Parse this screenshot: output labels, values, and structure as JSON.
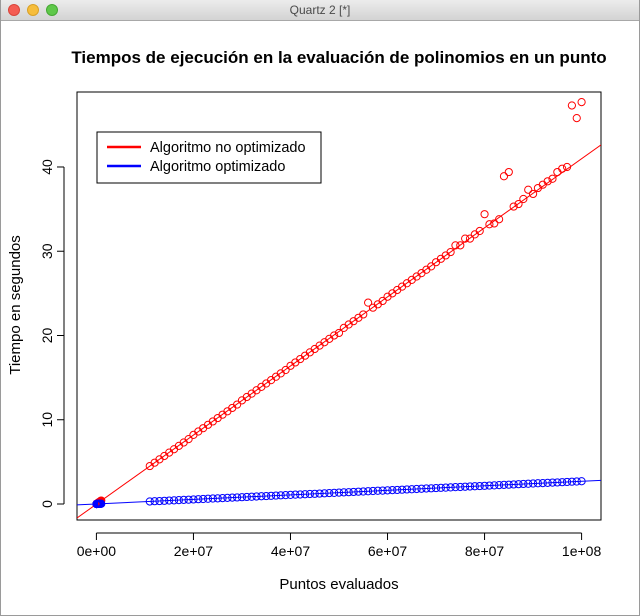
{
  "window": {
    "title": "Quartz 2 [*]"
  },
  "chart_data": {
    "type": "scatter",
    "title": "Tiempos de ejecución en la evaluación de polinomios en un punto",
    "xlabel": "Puntos evaluados",
    "ylabel": "Tiempo en segundos",
    "xlim": [
      -4000000,
      104000000
    ],
    "ylim": [
      -1.9,
      48.9
    ],
    "xticks": [
      0,
      20000000,
      40000000,
      60000000,
      80000000,
      100000000
    ],
    "xtick_labels": [
      "0e+00",
      "2e+07",
      "4e+07",
      "6e+07",
      "8e+07",
      "1e+08"
    ],
    "yticks": [
      0,
      10,
      20,
      30,
      40
    ],
    "ytick_labels": [
      "0",
      "10",
      "20",
      "30",
      "40"
    ],
    "grid": false,
    "legend": {
      "position": "top-left",
      "entries": [
        {
          "label": "Algoritmo no optimizado",
          "color": "#ff0000"
        },
        {
          "label": "Algoritmo optimizado",
          "color": "#0000ff"
        }
      ]
    },
    "series": [
      {
        "name": "Algoritmo no optimizado",
        "color": "#ff0000",
        "marker": "circle-open",
        "x": [
          10000,
          20000,
          30000,
          40000,
          50000,
          60000,
          70000,
          80000,
          90000,
          100000,
          200000,
          300000,
          400000,
          500000,
          600000,
          700000,
          800000,
          900000,
          1000000,
          11000000,
          12000000,
          13000000,
          14000000,
          15000000,
          16000000,
          17000000,
          18000000,
          19000000,
          20000000,
          21000000,
          22000000,
          23000000,
          24000000,
          25000000,
          26000000,
          27000000,
          28000000,
          29000000,
          30000000,
          31000000,
          32000000,
          33000000,
          34000000,
          35000000,
          36000000,
          37000000,
          38000000,
          39000000,
          40000000,
          41000000,
          42000000,
          43000000,
          44000000,
          45000000,
          46000000,
          47000000,
          48000000,
          49000000,
          50000000,
          51000000,
          52000000,
          53000000,
          54000000,
          55000000,
          56000000,
          57000000,
          58000000,
          59000000,
          60000000,
          61000000,
          62000000,
          63000000,
          64000000,
          65000000,
          66000000,
          67000000,
          68000000,
          69000000,
          70000000,
          71000000,
          72000000,
          73000000,
          74000000,
          75000000,
          76000000,
          77000000,
          78000000,
          79000000,
          80000000,
          81000000,
          82000000,
          83000000,
          84000000,
          85000000,
          86000000,
          87000000,
          88000000,
          89000000,
          90000000,
          91000000,
          92000000,
          93000000,
          94000000,
          95000000,
          96000000,
          97000000,
          98000000,
          99000000,
          100000000
        ],
        "y": [
          0.0,
          0.01,
          0.01,
          0.02,
          0.02,
          0.02,
          0.03,
          0.03,
          0.04,
          0.04,
          0.08,
          0.12,
          0.16,
          0.2,
          0.24,
          0.29,
          0.33,
          0.37,
          0.41,
          4.5,
          4.9,
          5.3,
          5.7,
          6.1,
          6.5,
          6.9,
          7.3,
          7.7,
          8.2,
          8.6,
          9.0,
          9.4,
          9.8,
          10.2,
          10.6,
          11.0,
          11.4,
          11.8,
          12.3,
          12.7,
          13.1,
          13.5,
          13.9,
          14.3,
          14.7,
          15.1,
          15.5,
          15.9,
          16.4,
          16.8,
          17.2,
          17.6,
          18.0,
          18.4,
          18.8,
          19.2,
          19.6,
          20.0,
          20.3,
          20.9,
          21.3,
          21.7,
          22.1,
          22.5,
          23.9,
          23.3,
          23.7,
          24.1,
          24.6,
          25.0,
          25.4,
          25.8,
          26.2,
          26.6,
          27.0,
          27.4,
          27.8,
          28.2,
          28.7,
          29.1,
          29.5,
          29.9,
          30.7,
          30.7,
          31.5,
          31.5,
          32.0,
          32.4,
          34.4,
          33.2,
          33.3,
          33.8,
          38.9,
          39.4,
          35.3,
          35.6,
          36.2,
          37.3,
          36.8,
          37.5,
          37.9,
          38.3,
          38.6,
          39.4,
          39.8,
          40.0,
          47.3,
          45.8,
          47.7
        ]
      },
      {
        "name": "Algoritmo optimizado",
        "color": "#0000ff",
        "marker": "circle-open",
        "x": [
          10000,
          20000,
          30000,
          40000,
          50000,
          60000,
          70000,
          80000,
          90000,
          100000,
          200000,
          300000,
          400000,
          500000,
          600000,
          700000,
          800000,
          900000,
          1000000,
          11000000,
          12000000,
          13000000,
          14000000,
          15000000,
          16000000,
          17000000,
          18000000,
          19000000,
          20000000,
          21000000,
          22000000,
          23000000,
          24000000,
          25000000,
          26000000,
          27000000,
          28000000,
          29000000,
          30000000,
          31000000,
          32000000,
          33000000,
          34000000,
          35000000,
          36000000,
          37000000,
          38000000,
          39000000,
          40000000,
          41000000,
          42000000,
          43000000,
          44000000,
          45000000,
          46000000,
          47000000,
          48000000,
          49000000,
          50000000,
          51000000,
          52000000,
          53000000,
          54000000,
          55000000,
          56000000,
          57000000,
          58000000,
          59000000,
          60000000,
          61000000,
          62000000,
          63000000,
          64000000,
          65000000,
          66000000,
          67000000,
          68000000,
          69000000,
          70000000,
          71000000,
          72000000,
          73000000,
          74000000,
          75000000,
          76000000,
          77000000,
          78000000,
          79000000,
          80000000,
          81000000,
          82000000,
          83000000,
          84000000,
          85000000,
          86000000,
          87000000,
          88000000,
          89000000,
          90000000,
          91000000,
          92000000,
          93000000,
          94000000,
          95000000,
          96000000,
          97000000,
          98000000,
          99000000,
          100000000
        ],
        "y": [
          0.0,
          0.0,
          0.0,
          0.0,
          0.0,
          0.0,
          0.0,
          0.0,
          0.0,
          0.0,
          0.01,
          0.01,
          0.01,
          0.01,
          0.02,
          0.02,
          0.02,
          0.02,
          0.03,
          0.3,
          0.33,
          0.35,
          0.38,
          0.41,
          0.43,
          0.46,
          0.49,
          0.51,
          0.54,
          0.57,
          0.59,
          0.62,
          0.65,
          0.67,
          0.7,
          0.73,
          0.76,
          0.78,
          0.81,
          0.84,
          0.86,
          0.89,
          0.92,
          0.94,
          0.97,
          1.0,
          1.03,
          1.05,
          1.08,
          1.11,
          1.13,
          1.16,
          1.19,
          1.21,
          1.24,
          1.27,
          1.3,
          1.32,
          1.35,
          1.38,
          1.4,
          1.43,
          1.46,
          1.48,
          1.51,
          1.54,
          1.57,
          1.59,
          1.62,
          1.65,
          1.67,
          1.7,
          1.73,
          1.75,
          1.78,
          1.81,
          1.84,
          1.86,
          1.89,
          1.92,
          1.94,
          1.97,
          2.0,
          2.02,
          2.05,
          2.08,
          2.11,
          2.13,
          2.16,
          2.19,
          2.21,
          2.24,
          2.27,
          2.29,
          2.32,
          2.35,
          2.38,
          2.4,
          2.43,
          2.46,
          2.48,
          2.51,
          2.54,
          2.56,
          2.59,
          2.62,
          2.65,
          2.67,
          2.7
        ]
      }
    ],
    "fits": [
      {
        "series": "Algoritmo no optimizado",
        "color": "#ff0000",
        "slope": 4.1e-07,
        "intercept": -0.02
      },
      {
        "series": "Algoritmo optimizado",
        "color": "#0000ff",
        "slope": 2.7e-08,
        "intercept": 0.0
      }
    ]
  }
}
